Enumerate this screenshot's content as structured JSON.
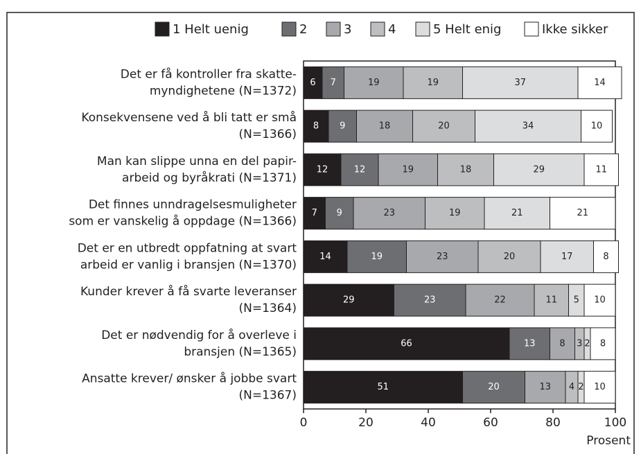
{
  "chart_data": {
    "type": "stacked-barh",
    "categories": [
      [
        "Det er få kontroller fra skatte-",
        "myndighetene (N=1372)"
      ],
      [
        "Konsekvensene ved å bli tatt er små",
        "(N=1366)"
      ],
      [
        "Man kan slippe unna en del papir-",
        "arbeid og byråkrati (N=1371)"
      ],
      [
        "Det finnes unndragelsesmuligheter",
        "som er vanskelig å oppdage (N=1366)"
      ],
      [
        "Det er en utbredt oppfatning at svart",
        "arbeid er vanlig i bransjen (N=1370)"
      ],
      [
        "Kunder krever å få svarte leveranser",
        "(N=1364)"
      ],
      [
        "Det er nødvendig for å overleve i",
        "bransjen (N=1365)"
      ],
      [
        "Ansatte krever/ ønsker å jobbe svart",
        "(N=1367)"
      ]
    ],
    "series": [
      {
        "name": "1 Helt uenig",
        "color": "#231f20",
        "values": [
          6,
          8,
          12,
          7,
          14,
          29,
          66,
          51
        ]
      },
      {
        "name": "2",
        "color": "#6d6e71",
        "values": [
          7,
          9,
          12,
          9,
          19,
          23,
          13,
          20
        ]
      },
      {
        "name": "3",
        "color": "#a7a9ac",
        "values": [
          19,
          18,
          19,
          23,
          23,
          22,
          8,
          13
        ]
      },
      {
        "name": "4",
        "color": "#bcbec0",
        "values": [
          19,
          20,
          18,
          19,
          20,
          11,
          3,
          4
        ]
      },
      {
        "name": "5 Helt enig",
        "color": "#dcddde",
        "values": [
          37,
          34,
          29,
          21,
          17,
          5,
          2,
          2
        ]
      },
      {
        "name": "Ikke sikker",
        "color": "#ffffff",
        "values": [
          14,
          10,
          11,
          21,
          8,
          10,
          8,
          10
        ]
      }
    ],
    "xlim": [
      0,
      100
    ],
    "xticks": [
      0,
      20,
      40,
      60,
      80,
      100
    ],
    "xlabel": "Prosent"
  }
}
